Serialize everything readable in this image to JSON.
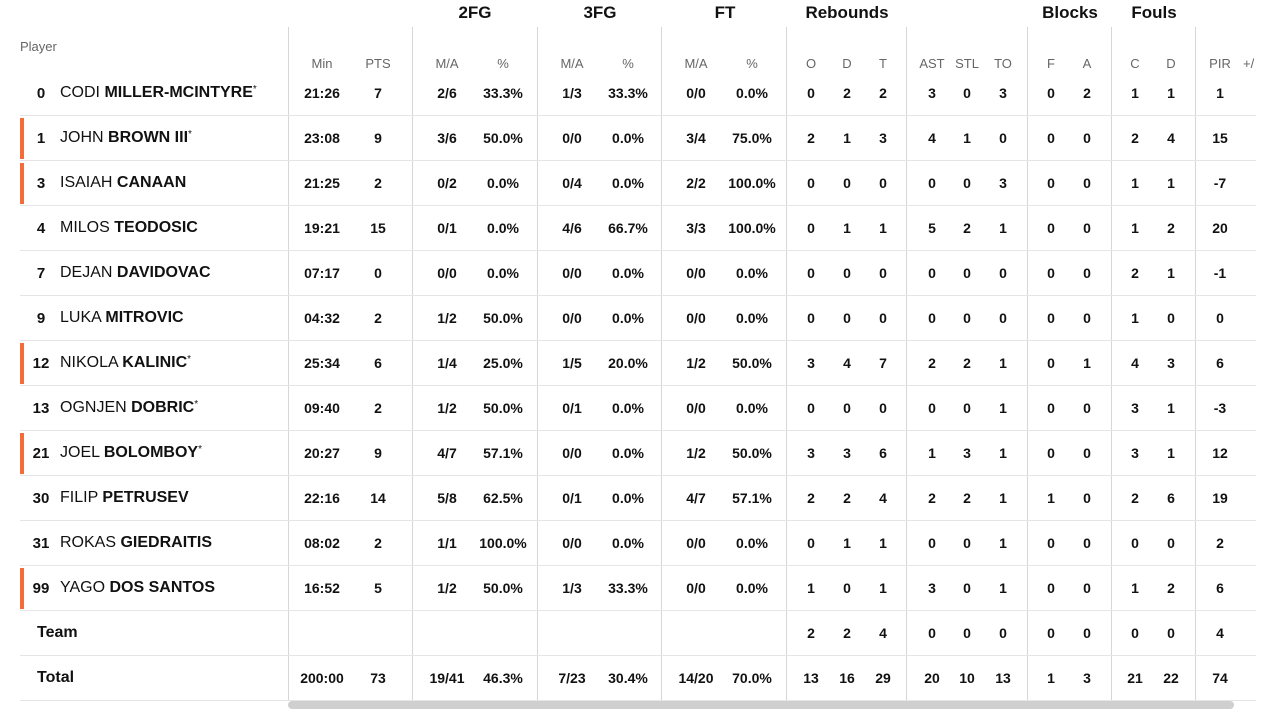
{
  "groups": {
    "fg2": "2FG",
    "fg3": "3FG",
    "ft": "FT",
    "rebounds": "Rebounds",
    "blocks": "Blocks",
    "fouls": "Fouls"
  },
  "headers": {
    "player": "Player",
    "min": "Min",
    "pts": "PTS",
    "fg2_ma": "M/A",
    "fg2_pct": "%",
    "fg3_ma": "M/A",
    "fg3_pct": "%",
    "ft_ma": "M/A",
    "ft_pct": "%",
    "reb_o": "O",
    "reb_d": "D",
    "reb_t": "T",
    "ast": "AST",
    "stl": "STL",
    "to": "TO",
    "blk_f": "F",
    "blk_a": "A",
    "foul_c": "C",
    "foul_d": "D",
    "pir": "PIR",
    "plusminus": "+/"
  },
  "colors": {
    "starter_marker": "#f36c3a",
    "grid_line": "#d6d6d6",
    "header_text": "#666666"
  },
  "players": [
    {
      "num": "0",
      "first": "CODI",
      "last": "MILLER-MCINTYRE",
      "star": "*",
      "starter": false,
      "min": "21:26",
      "pts": "7",
      "fg2_ma": "2/6",
      "fg2_pct": "33.3%",
      "fg3_ma": "1/3",
      "fg3_pct": "33.3%",
      "ft_ma": "0/0",
      "ft_pct": "0.0%",
      "reb_o": "0",
      "reb_d": "2",
      "reb_t": "2",
      "ast": "3",
      "stl": "0",
      "to": "3",
      "blk_f": "0",
      "blk_a": "2",
      "foul_c": "1",
      "foul_d": "1",
      "pir": "1"
    },
    {
      "num": "1",
      "first": "JOHN",
      "last": "BROWN III",
      "star": "*",
      "starter": true,
      "min": "23:08",
      "pts": "9",
      "fg2_ma": "3/6",
      "fg2_pct": "50.0%",
      "fg3_ma": "0/0",
      "fg3_pct": "0.0%",
      "ft_ma": "3/4",
      "ft_pct": "75.0%",
      "reb_o": "2",
      "reb_d": "1",
      "reb_t": "3",
      "ast": "4",
      "stl": "1",
      "to": "0",
      "blk_f": "0",
      "blk_a": "0",
      "foul_c": "2",
      "foul_d": "4",
      "pir": "15"
    },
    {
      "num": "3",
      "first": "ISAIAH",
      "last": "CANAAN",
      "star": "",
      "starter": true,
      "min": "21:25",
      "pts": "2",
      "fg2_ma": "0/2",
      "fg2_pct": "0.0%",
      "fg3_ma": "0/4",
      "fg3_pct": "0.0%",
      "ft_ma": "2/2",
      "ft_pct": "100.0%",
      "reb_o": "0",
      "reb_d": "0",
      "reb_t": "0",
      "ast": "0",
      "stl": "0",
      "to": "3",
      "blk_f": "0",
      "blk_a": "0",
      "foul_c": "1",
      "foul_d": "1",
      "pir": "-7"
    },
    {
      "num": "4",
      "first": "MILOS",
      "last": "TEODOSIC",
      "star": "",
      "starter": false,
      "min": "19:21",
      "pts": "15",
      "fg2_ma": "0/1",
      "fg2_pct": "0.0%",
      "fg3_ma": "4/6",
      "fg3_pct": "66.7%",
      "ft_ma": "3/3",
      "ft_pct": "100.0%",
      "reb_o": "0",
      "reb_d": "1",
      "reb_t": "1",
      "ast": "5",
      "stl": "2",
      "to": "1",
      "blk_f": "0",
      "blk_a": "0",
      "foul_c": "1",
      "foul_d": "2",
      "pir": "20"
    },
    {
      "num": "7",
      "first": "DEJAN",
      "last": "DAVIDOVAC",
      "star": "",
      "starter": false,
      "min": "07:17",
      "pts": "0",
      "fg2_ma": "0/0",
      "fg2_pct": "0.0%",
      "fg3_ma": "0/0",
      "fg3_pct": "0.0%",
      "ft_ma": "0/0",
      "ft_pct": "0.0%",
      "reb_o": "0",
      "reb_d": "0",
      "reb_t": "0",
      "ast": "0",
      "stl": "0",
      "to": "0",
      "blk_f": "0",
      "blk_a": "0",
      "foul_c": "2",
      "foul_d": "1",
      "pir": "-1"
    },
    {
      "num": "9",
      "first": "LUKA",
      "last": "MITROVIC",
      "star": "",
      "starter": false,
      "min": "04:32",
      "pts": "2",
      "fg2_ma": "1/2",
      "fg2_pct": "50.0%",
      "fg3_ma": "0/0",
      "fg3_pct": "0.0%",
      "ft_ma": "0/0",
      "ft_pct": "0.0%",
      "reb_o": "0",
      "reb_d": "0",
      "reb_t": "0",
      "ast": "0",
      "stl": "0",
      "to": "0",
      "blk_f": "0",
      "blk_a": "0",
      "foul_c": "1",
      "foul_d": "0",
      "pir": "0"
    },
    {
      "num": "12",
      "first": "NIKOLA",
      "last": "KALINIC",
      "star": "*",
      "starter": true,
      "min": "25:34",
      "pts": "6",
      "fg2_ma": "1/4",
      "fg2_pct": "25.0%",
      "fg3_ma": "1/5",
      "fg3_pct": "20.0%",
      "ft_ma": "1/2",
      "ft_pct": "50.0%",
      "reb_o": "3",
      "reb_d": "4",
      "reb_t": "7",
      "ast": "2",
      "stl": "2",
      "to": "1",
      "blk_f": "0",
      "blk_a": "1",
      "foul_c": "4",
      "foul_d": "3",
      "pir": "6"
    },
    {
      "num": "13",
      "first": "OGNJEN",
      "last": "DOBRIC",
      "star": "*",
      "starter": false,
      "min": "09:40",
      "pts": "2",
      "fg2_ma": "1/2",
      "fg2_pct": "50.0%",
      "fg3_ma": "0/1",
      "fg3_pct": "0.0%",
      "ft_ma": "0/0",
      "ft_pct": "0.0%",
      "reb_o": "0",
      "reb_d": "0",
      "reb_t": "0",
      "ast": "0",
      "stl": "0",
      "to": "1",
      "blk_f": "0",
      "blk_a": "0",
      "foul_c": "3",
      "foul_d": "1",
      "pir": "-3"
    },
    {
      "num": "21",
      "first": "JOEL",
      "last": "BOLOMBOY",
      "star": "*",
      "starter": true,
      "min": "20:27",
      "pts": "9",
      "fg2_ma": "4/7",
      "fg2_pct": "57.1%",
      "fg3_ma": "0/0",
      "fg3_pct": "0.0%",
      "ft_ma": "1/2",
      "ft_pct": "50.0%",
      "reb_o": "3",
      "reb_d": "3",
      "reb_t": "6",
      "ast": "1",
      "stl": "3",
      "to": "1",
      "blk_f": "0",
      "blk_a": "0",
      "foul_c": "3",
      "foul_d": "1",
      "pir": "12"
    },
    {
      "num": "30",
      "first": "FILIP",
      "last": "PETRUSEV",
      "star": "",
      "starter": false,
      "min": "22:16",
      "pts": "14",
      "fg2_ma": "5/8",
      "fg2_pct": "62.5%",
      "fg3_ma": "0/1",
      "fg3_pct": "0.0%",
      "ft_ma": "4/7",
      "ft_pct": "57.1%",
      "reb_o": "2",
      "reb_d": "2",
      "reb_t": "4",
      "ast": "2",
      "stl": "2",
      "to": "1",
      "blk_f": "1",
      "blk_a": "0",
      "foul_c": "2",
      "foul_d": "6",
      "pir": "19"
    },
    {
      "num": "31",
      "first": "ROKAS",
      "last": "GIEDRAITIS",
      "star": "",
      "starter": false,
      "min": "08:02",
      "pts": "2",
      "fg2_ma": "1/1",
      "fg2_pct": "100.0%",
      "fg3_ma": "0/0",
      "fg3_pct": "0.0%",
      "ft_ma": "0/0",
      "ft_pct": "0.0%",
      "reb_o": "0",
      "reb_d": "1",
      "reb_t": "1",
      "ast": "0",
      "stl": "0",
      "to": "1",
      "blk_f": "0",
      "blk_a": "0",
      "foul_c": "0",
      "foul_d": "0",
      "pir": "2"
    },
    {
      "num": "99",
      "first": "YAGO",
      "last": "DOS SANTOS",
      "star": "",
      "starter": true,
      "min": "16:52",
      "pts": "5",
      "fg2_ma": "1/2",
      "fg2_pct": "50.0%",
      "fg3_ma": "1/3",
      "fg3_pct": "33.3%",
      "ft_ma": "0/0",
      "ft_pct": "0.0%",
      "reb_o": "1",
      "reb_d": "0",
      "reb_t": "1",
      "ast": "3",
      "stl": "0",
      "to": "1",
      "blk_f": "0",
      "blk_a": "0",
      "foul_c": "1",
      "foul_d": "2",
      "pir": "6"
    }
  ],
  "team": {
    "label": "Team",
    "min": "",
    "pts": "",
    "fg2_ma": "",
    "fg2_pct": "",
    "fg3_ma": "",
    "fg3_pct": "",
    "ft_ma": "",
    "ft_pct": "",
    "reb_o": "2",
    "reb_d": "2",
    "reb_t": "4",
    "ast": "0",
    "stl": "0",
    "to": "0",
    "blk_f": "0",
    "blk_a": "0",
    "foul_c": "0",
    "foul_d": "0",
    "pir": "4"
  },
  "total": {
    "label": "Total",
    "min": "200:00",
    "pts": "73",
    "fg2_ma": "19/41",
    "fg2_pct": "46.3%",
    "fg3_ma": "7/23",
    "fg3_pct": "30.4%",
    "ft_ma": "14/20",
    "ft_pct": "70.0%",
    "reb_o": "13",
    "reb_d": "16",
    "reb_t": "29",
    "ast": "20",
    "stl": "10",
    "to": "13",
    "blk_f": "1",
    "blk_a": "3",
    "foul_c": "21",
    "foul_d": "22",
    "pir": "74"
  }
}
